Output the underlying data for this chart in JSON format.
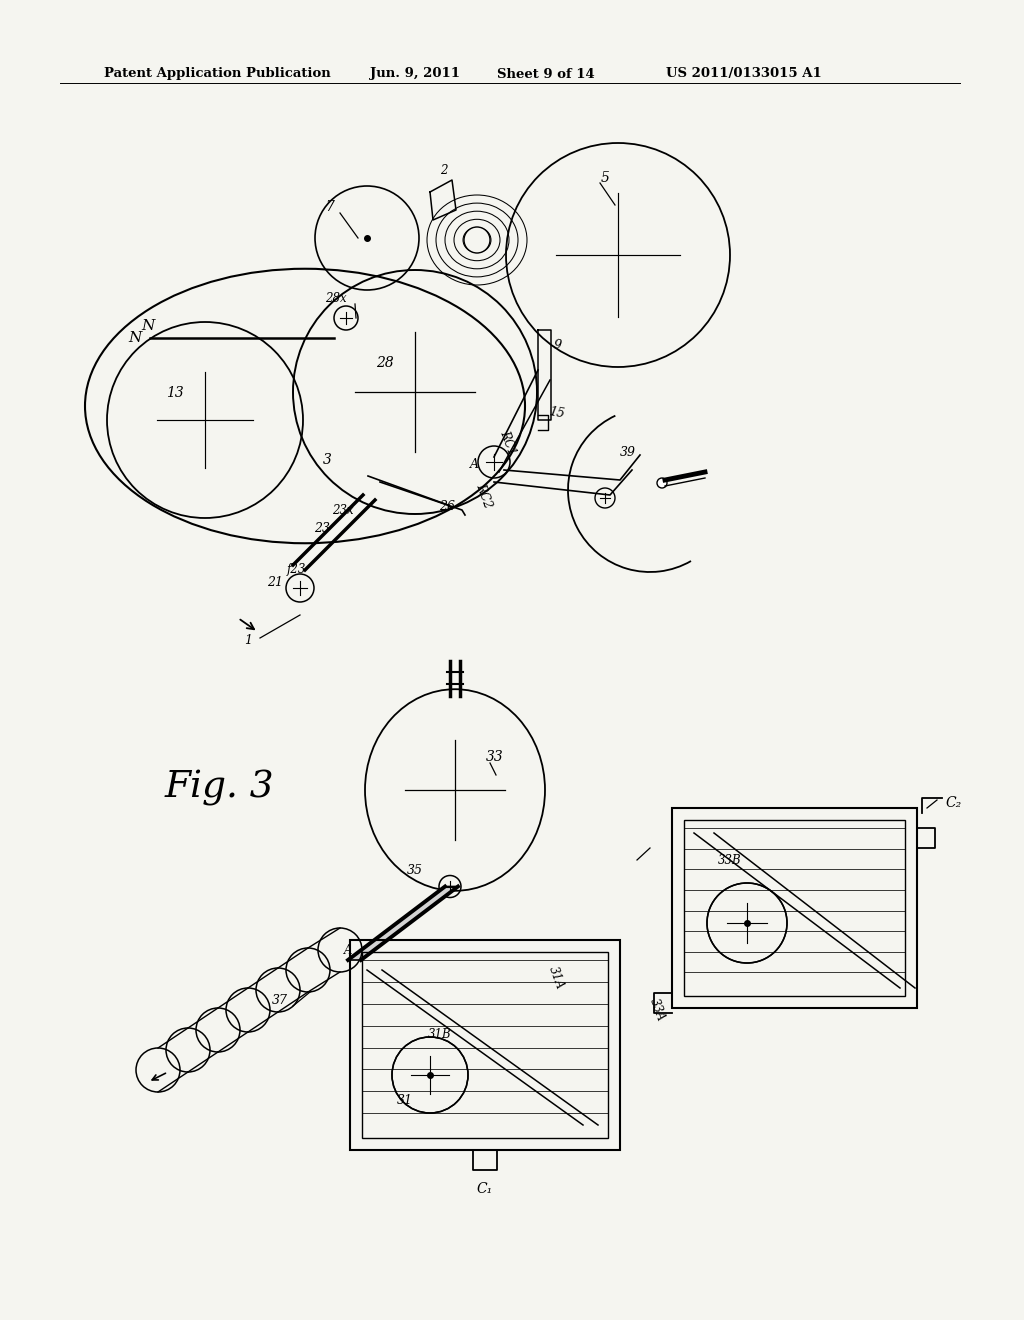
{
  "bg_color": "#f5f5f0",
  "header_text": "Patent Application Publication",
  "header_date": "Jun. 9, 2011",
  "header_sheet": "Sheet 9 of 14",
  "header_patent": "US 2011/0133015 A1",
  "fig_label": "Fig. 3"
}
